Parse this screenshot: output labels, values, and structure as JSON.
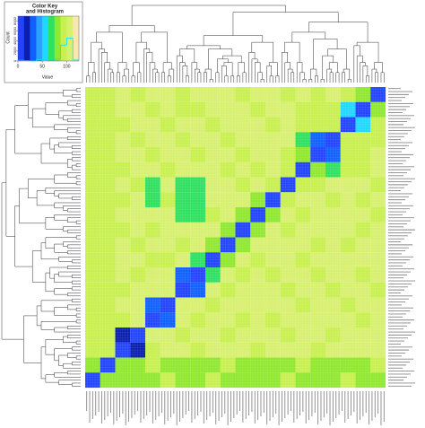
{
  "chart_data": {
    "type": "heatmap",
    "title": "Color Key",
    "subtitle": "and Histogram",
    "xlabel": "Value",
    "ylabel": "Count",
    "xlim": [
      0,
      125
    ],
    "xticks": [
      0,
      50,
      100
    ],
    "ylim": [
      0,
      9000
    ],
    "yticks": [
      0,
      2000,
      4000,
      6000,
      8000
    ],
    "colors": [
      "#2244ff",
      "#0a1fb0",
      "#1060ff",
      "#2aa0ff",
      "#20d8ff",
      "#30e060",
      "#90e830",
      "#c8f050",
      "#d8f070",
      "#f8e8b0"
    ],
    "bins": [
      0,
      12.5,
      25,
      37.5,
      50,
      62.5,
      75,
      87.5,
      100,
      112.5,
      125
    ],
    "counts": [
      150,
      50,
      0,
      300,
      100,
      150,
      400,
      3200,
      4600,
      200
    ],
    "hist_color": "#00e5ff",
    "z": [
      [
        92,
        95,
        100,
        98,
        102,
        100,
        97,
        100,
        104,
        100,
        98,
        100,
        101,
        99,
        100,
        96,
        100,
        88,
        85,
        0
      ],
      [
        94,
        92,
        100,
        101,
        98,
        100,
        99,
        97,
        100,
        102,
        100,
        98,
        100,
        100,
        97,
        99,
        90,
        60,
        0,
        85
      ],
      [
        95,
        93,
        98,
        100,
        100,
        97,
        100,
        102,
        99,
        100,
        101,
        100,
        98,
        100,
        99,
        95,
        88,
        0,
        60,
        88
      ],
      [
        90,
        92,
        100,
        99,
        100,
        101,
        98,
        100,
        100,
        97,
        100,
        100,
        102,
        100,
        72,
        30,
        0,
        88,
        90,
        96
      ],
      [
        91,
        94,
        101,
        100,
        97,
        100,
        100,
        99,
        101,
        100,
        98,
        100,
        100,
        97,
        75,
        0,
        30,
        95,
        92,
        100
      ],
      [
        93,
        92,
        99,
        100,
        100,
        98,
        101,
        100,
        100,
        99,
        100,
        97,
        100,
        90,
        0,
        75,
        72,
        99,
        98,
        100
      ],
      [
        92,
        90,
        100,
        98,
        70,
        100,
        65,
        68,
        100,
        100,
        99,
        100,
        88,
        0,
        90,
        97,
        100,
        100,
        101,
        99
      ],
      [
        94,
        93,
        98,
        100,
        72,
        99,
        66,
        64,
        100,
        101,
        100,
        85,
        0,
        88,
        100,
        100,
        98,
        100,
        99,
        100
      ],
      [
        91,
        92,
        100,
        101,
        100,
        100,
        68,
        65,
        99,
        100,
        80,
        0,
        85,
        100,
        97,
        100,
        100,
        102,
        100,
        98
      ],
      [
        90,
        95,
        99,
        100,
        98,
        101,
        100,
        100,
        100,
        82,
        0,
        80,
        100,
        99,
        100,
        101,
        100,
        100,
        98,
        100
      ],
      [
        93,
        91,
        100,
        99,
        100,
        100,
        97,
        100,
        78,
        0,
        82,
        100,
        101,
        100,
        100,
        99,
        100,
        97,
        100,
        101
      ],
      [
        92,
        94,
        101,
        100,
        99,
        98,
        100,
        70,
        0,
        78,
        100,
        99,
        100,
        100,
        98,
        100,
        101,
        100,
        100,
        100
      ],
      [
        90,
        92,
        100,
        98,
        100,
        100,
        25,
        0,
        70,
        100,
        99,
        100,
        98,
        100,
        100,
        97,
        100,
        100,
        99,
        100
      ],
      [
        91,
        93,
        99,
        100,
        100,
        100,
        0,
        25,
        100,
        97,
        100,
        100,
        100,
        99,
        101,
        100,
        99,
        100,
        100,
        98
      ],
      [
        92,
        90,
        100,
        101,
        25,
        0,
        100,
        100,
        98,
        100,
        100,
        102,
        100,
        100,
        99,
        100,
        100,
        97,
        100,
        100
      ],
      [
        94,
        92,
        98,
        100,
        0,
        25,
        100,
        99,
        100,
        100,
        98,
        100,
        99,
        100,
        100,
        101,
        100,
        100,
        98,
        100
      ],
      [
        90,
        91,
        20,
        0,
        100,
        100,
        99,
        100,
        100,
        98,
        100,
        100,
        100,
        97,
        100,
        100,
        99,
        100,
        100,
        101
      ],
      [
        92,
        93,
        0,
        20,
        99,
        100,
        100,
        98,
        101,
        100,
        100,
        99,
        100,
        100,
        100,
        98,
        100,
        101,
        100,
        100
      ],
      [
        80,
        0,
        85,
        86,
        88,
        85,
        87,
        86,
        85,
        88,
        86,
        85,
        87,
        86,
        88,
        85,
        87,
        86,
        85,
        88
      ],
      [
        0,
        80,
        86,
        85,
        87,
        88,
        85,
        86,
        88,
        85,
        87,
        86,
        85,
        88,
        86,
        87,
        85,
        88,
        86,
        85
      ]
    ]
  }
}
